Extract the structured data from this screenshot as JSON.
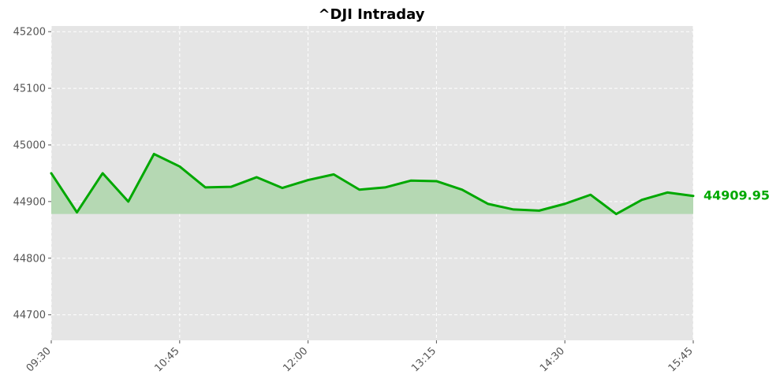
{
  "chart_data": {
    "type": "area",
    "title": "^DJI Intraday",
    "xlabel": "",
    "ylabel": "",
    "x": [
      "09:30",
      "09:45",
      "10:00",
      "10:15",
      "10:30",
      "10:45",
      "11:00",
      "11:15",
      "11:30",
      "11:45",
      "12:00",
      "12:15",
      "12:30",
      "12:45",
      "13:00",
      "13:15",
      "13:30",
      "13:45",
      "14:00",
      "14:15",
      "14:30",
      "14:45",
      "15:00",
      "15:15",
      "15:30",
      "15:45"
    ],
    "series": [
      {
        "values": [
          44950,
          44881,
          44950,
          44900,
          44984,
          44962,
          44925,
          44926,
          44943,
          44924,
          44938,
          44948,
          44921,
          44925,
          44937,
          44936,
          44921,
          44896,
          44886,
          44884,
          44896,
          44912,
          44878,
          44903,
          44916,
          44909.95
        ],
        "color": "#00a800"
      }
    ],
    "fill_baseline": 44878,
    "fill_color": "#b5d8b3",
    "ylim": [
      44655,
      45210
    ],
    "yticks": [
      44700,
      44800,
      44900,
      45000,
      45100,
      45200
    ],
    "xticks": [
      "09:30",
      "10:45",
      "12:00",
      "13:15",
      "14:30",
      "15:45"
    ],
    "xticks_index": [
      0,
      5,
      10,
      15,
      20,
      25
    ],
    "last_value_label": "44909.95",
    "last_value_color": "#00a800",
    "plot_background": "#e5e5e5",
    "grid": true,
    "legend": "none"
  }
}
